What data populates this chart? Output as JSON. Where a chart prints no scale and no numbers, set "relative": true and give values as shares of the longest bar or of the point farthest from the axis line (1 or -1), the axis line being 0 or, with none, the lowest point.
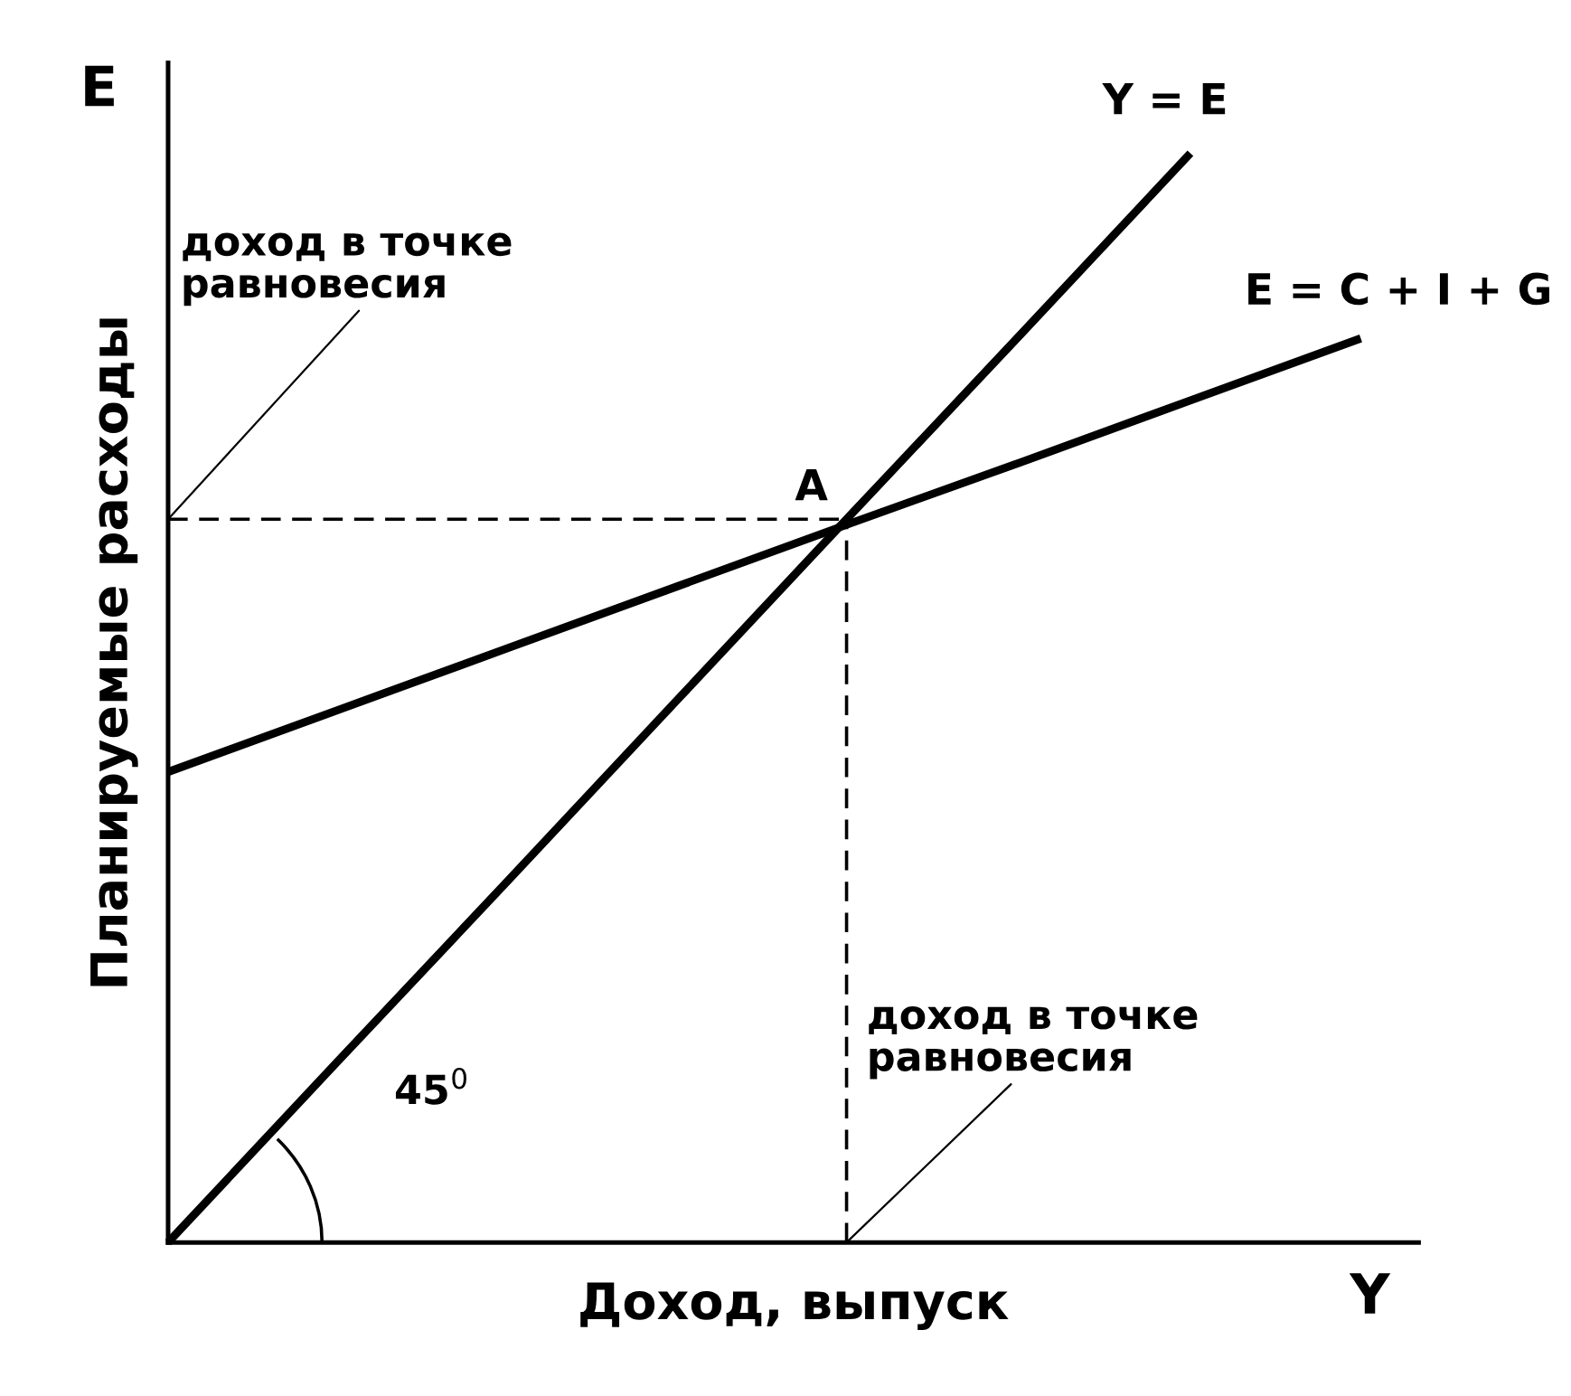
{
  "chart_data": {
    "type": "line",
    "relative": true,
    "xlabel": "Доход, выпуск",
    "ylabel": "Планируемые расходы",
    "categories": [
      null,
      null,
      null,
      null,
      null,
      null,
      null,
      null
    ],
    "series": [
      {
        "name": "Y = E",
        "color": "#000000",
        "values": [
          0,
          0.167,
          0.333,
          0.5,
          0.667,
          0.833,
          1,
          null
        ]
      },
      {
        "name": "E = C + I + G",
        "color": "#000000",
        "values": [
          0.432,
          0.489,
          0.546,
          0.603,
          0.66,
          0.716,
          0.773,
          0.83
        ]
      }
    ],
    "ref_lines": [
      {
        "axis": "y",
        "value": 0.664,
        "line_style": "dashed",
        "color": "#000000"
      }
    ],
    "annotations": [
      "A",
      "доход в точке\nравновесия",
      "доход в точке\nравновесия",
      "45$^{0}$",
      "E",
      "Y"
    ],
    "line_style": "solid",
    "marker": "none",
    "grid": false
  }
}
